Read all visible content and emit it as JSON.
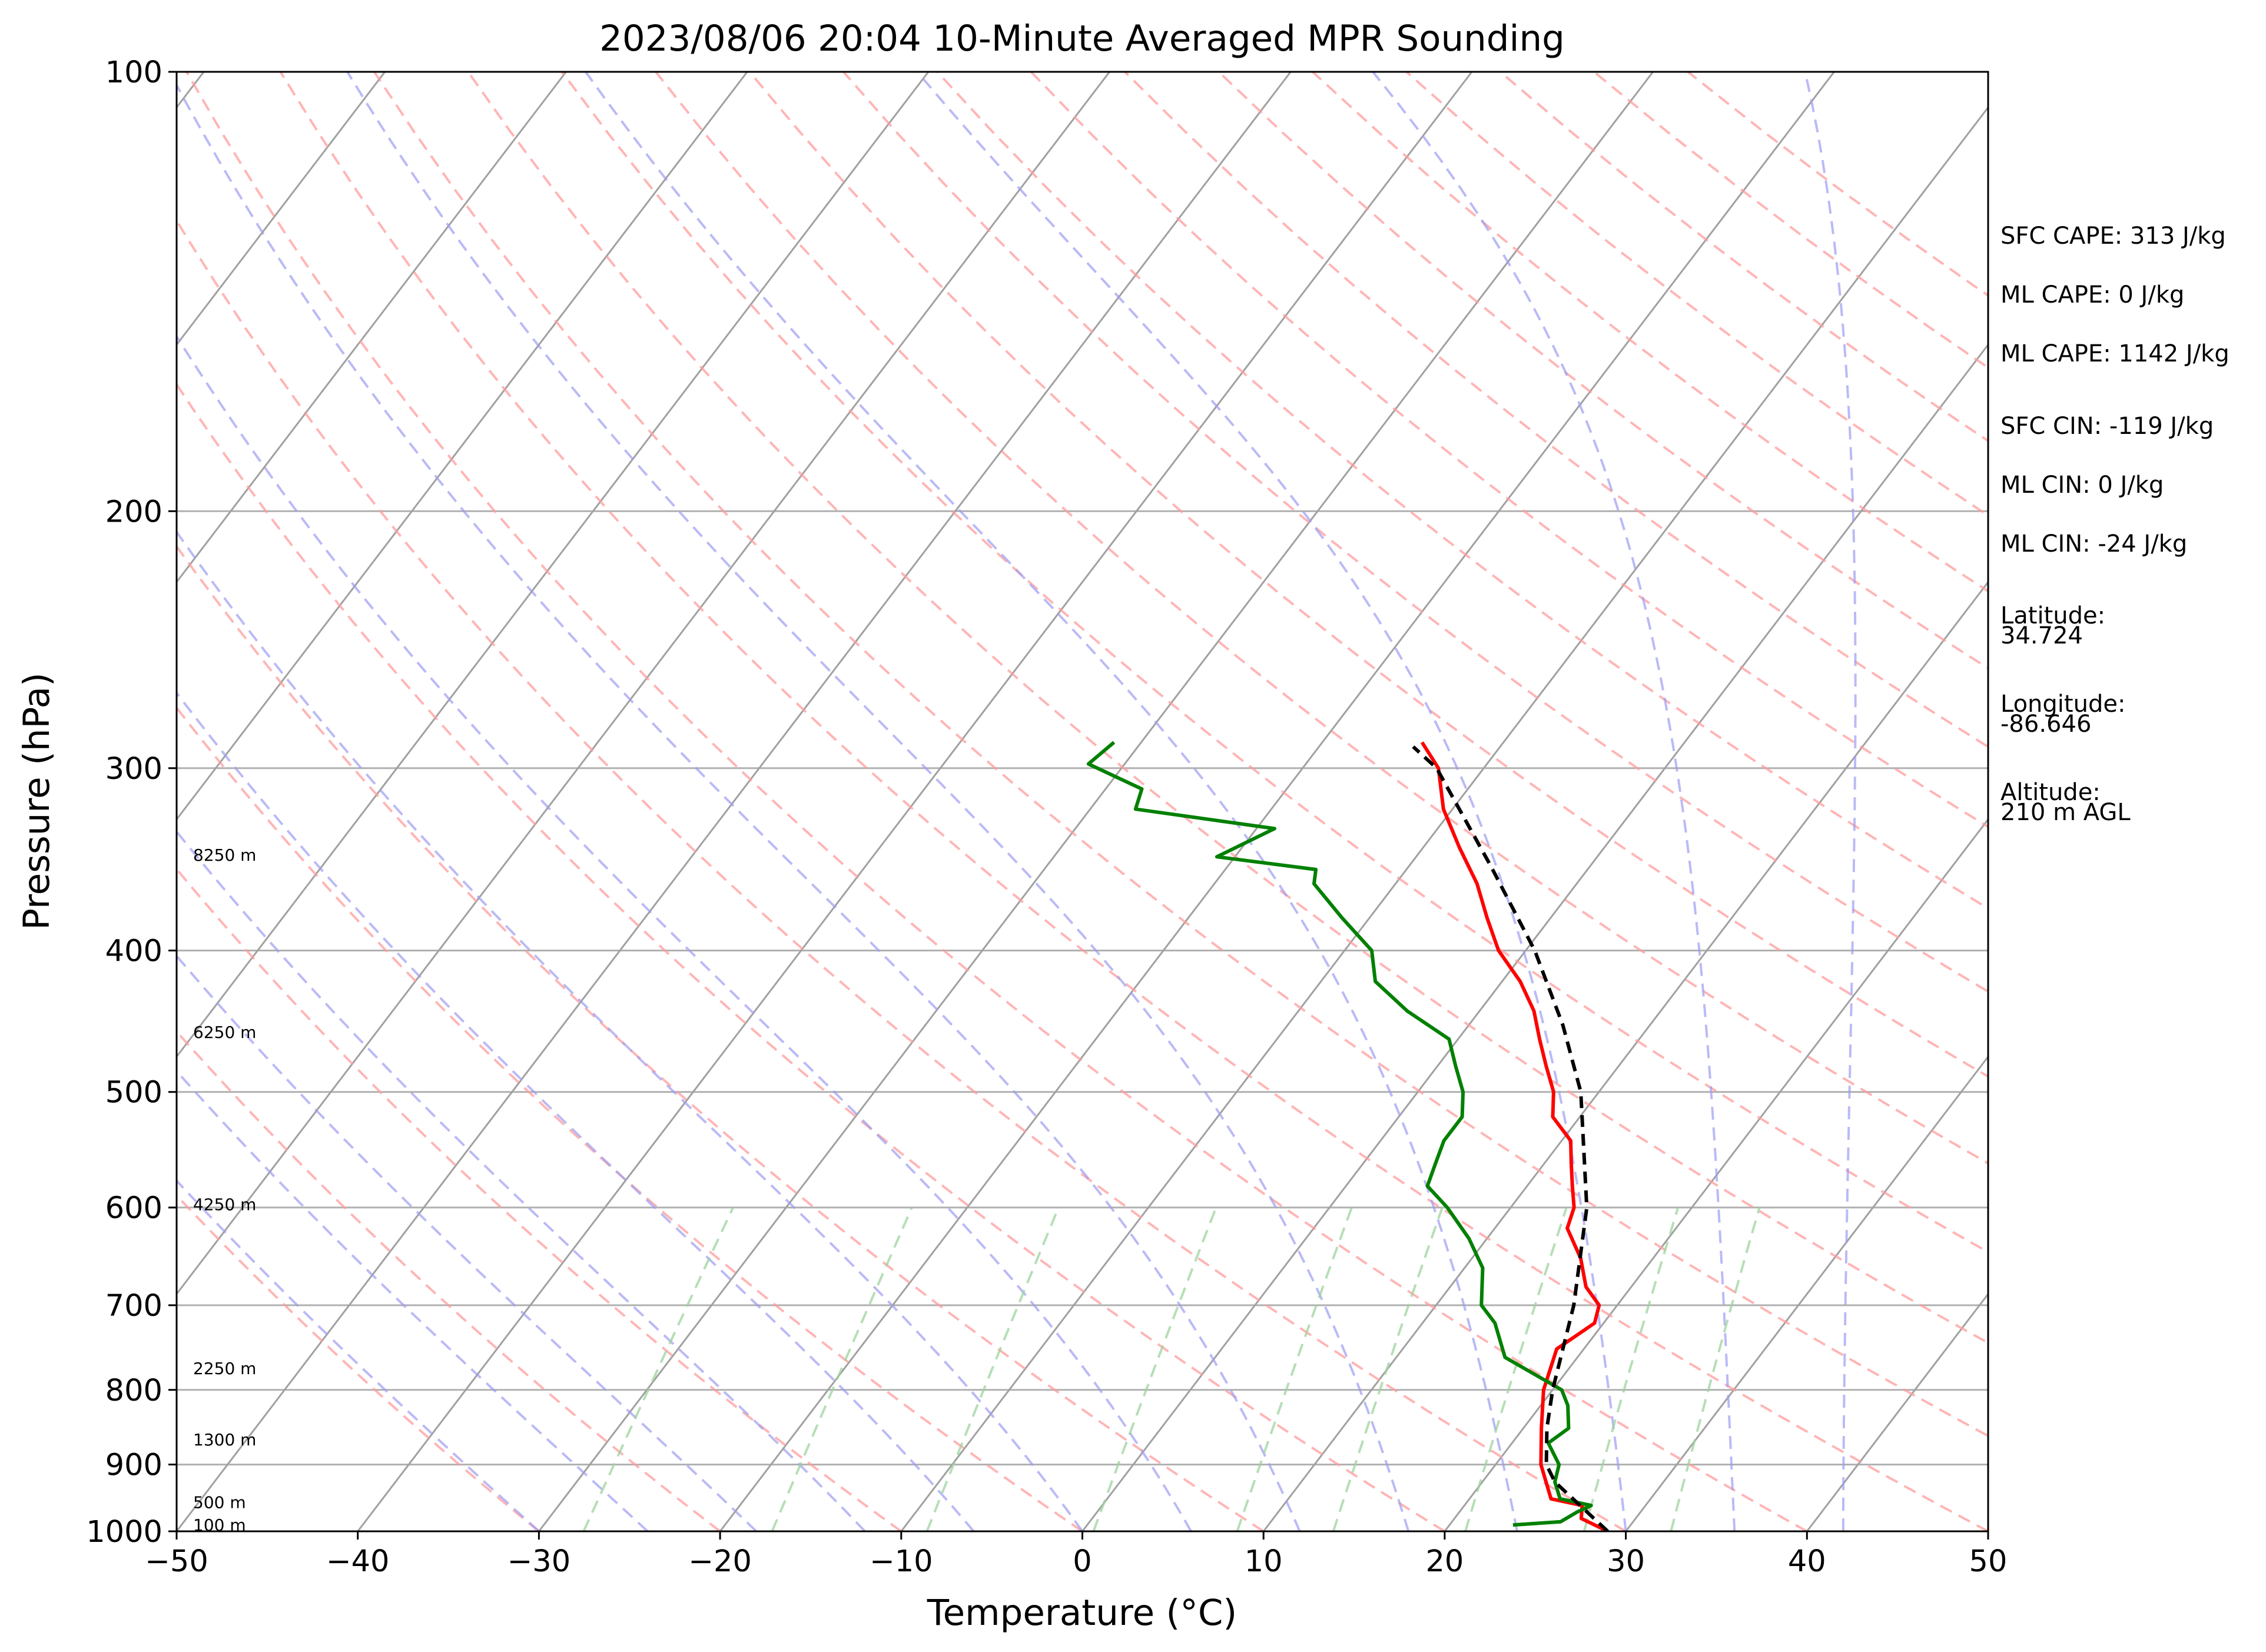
{
  "chart_data": {
    "type": "line",
    "title": "2023/08/06 20:04 10-Minute Averaged MPR Sounding",
    "xlabel": "Temperature (°C)",
    "ylabel": "Pressure (hPa)",
    "xlim": [
      -50,
      50
    ],
    "ylim": [
      1000,
      100
    ],
    "y_scale": "log",
    "skew_t": true,
    "grid": true,
    "x_ticks": [
      "−50",
      "−40",
      "−30",
      "−20",
      "−10",
      "0",
      "10",
      "20",
      "30",
      "40",
      "50"
    ],
    "y_ticks": [
      "100",
      "200",
      "300",
      "400",
      "500",
      "600",
      "700",
      "800",
      "900",
      "1000"
    ],
    "height_labels": [
      {
        "text": "100 m",
        "p": 990
      },
      {
        "text": "500 m",
        "p": 955
      },
      {
        "text": "1300 m",
        "p": 865
      },
      {
        "text": "2250 m",
        "p": 773
      },
      {
        "text": "4250 m",
        "p": 597
      },
      {
        "text": "6250 m",
        "p": 455
      },
      {
        "text": "8250 m",
        "p": 344
      }
    ],
    "series": [
      {
        "color": "#ff0000",
        "points": [
          [
            1000,
            29.0
          ],
          [
            980,
            27.0
          ],
          [
            960,
            26.5
          ],
          [
            950,
            24.5
          ],
          [
            900,
            22.5
          ],
          [
            850,
            21.0
          ],
          [
            800,
            19.5
          ],
          [
            750,
            18.5
          ],
          [
            720,
            19.5
          ],
          [
            700,
            19.0
          ],
          [
            680,
            17.5
          ],
          [
            650,
            16.0
          ],
          [
            620,
            14.0
          ],
          [
            600,
            13.5
          ],
          [
            580,
            12.5
          ],
          [
            560,
            11.5
          ],
          [
            540,
            10.5
          ],
          [
            520,
            8.5
          ],
          [
            500,
            7.5
          ],
          [
            480,
            6.0
          ],
          [
            460,
            4.5
          ],
          [
            440,
            3.0
          ],
          [
            420,
            1.0
          ],
          [
            400,
            -1.5
          ],
          [
            380,
            -3.5
          ],
          [
            360,
            -5.5
          ],
          [
            340,
            -8.0
          ],
          [
            320,
            -10.5
          ],
          [
            300,
            -12.5
          ],
          [
            288,
            -14.5
          ]
        ]
      },
      {
        "color": "#008000",
        "points": [
          [
            990,
            23.5
          ],
          [
            985,
            26.0
          ],
          [
            970,
            26.5
          ],
          [
            960,
            27.0
          ],
          [
            950,
            25.0
          ],
          [
            925,
            24.0
          ],
          [
            900,
            23.5
          ],
          [
            870,
            22.0
          ],
          [
            850,
            22.5
          ],
          [
            820,
            21.5
          ],
          [
            800,
            20.5
          ],
          [
            760,
            16.0
          ],
          [
            720,
            14.0
          ],
          [
            700,
            12.5
          ],
          [
            660,
            11.0
          ],
          [
            630,
            9.0
          ],
          [
            600,
            6.5
          ],
          [
            580,
            4.5
          ],
          [
            560,
            4.0
          ],
          [
            540,
            3.5
          ],
          [
            520,
            3.5
          ],
          [
            500,
            2.5
          ],
          [
            480,
            1.0
          ],
          [
            460,
            -0.5
          ],
          [
            440,
            -4.0
          ],
          [
            420,
            -7.0
          ],
          [
            400,
            -8.5
          ],
          [
            380,
            -11.5
          ],
          [
            360,
            -14.5
          ],
          [
            352,
            -15.0
          ],
          [
            345,
            -21.0
          ],
          [
            330,
            -19.0
          ],
          [
            320,
            -27.5
          ],
          [
            310,
            -28.0
          ],
          [
            298,
            -32.0
          ],
          [
            288,
            -31.5
          ]
        ]
      },
      {
        "color": "#000000",
        "dashed": true,
        "points": [
          [
            1000,
            29.0
          ],
          [
            925,
            24.0
          ],
          [
            900,
            22.8
          ],
          [
            850,
            21.3
          ],
          [
            800,
            20.0
          ],
          [
            700,
            17.6
          ],
          [
            600,
            14.2
          ],
          [
            500,
            9.0
          ],
          [
            450,
            5.2
          ],
          [
            400,
            0.5
          ],
          [
            350,
            -5.5
          ],
          [
            300,
            -12.6
          ],
          [
            290,
            -14.8
          ]
        ]
      }
    ],
    "info": [
      [
        "SFC CAPE: 313 J/kg"
      ],
      [
        "ML CAPE: 0 J/kg"
      ],
      [
        "ML CAPE: 1142 J/kg"
      ],
      [
        "SFC CIN: -119 J/kg"
      ],
      [
        "ML CIN: 0 J/kg"
      ],
      [
        "ML CIN: -24 J/kg"
      ],
      [
        "Latitude:",
        "34.724"
      ],
      [
        "Longitude:",
        "-86.646"
      ],
      [
        "Altitude:",
        "210 m AGL"
      ]
    ]
  }
}
